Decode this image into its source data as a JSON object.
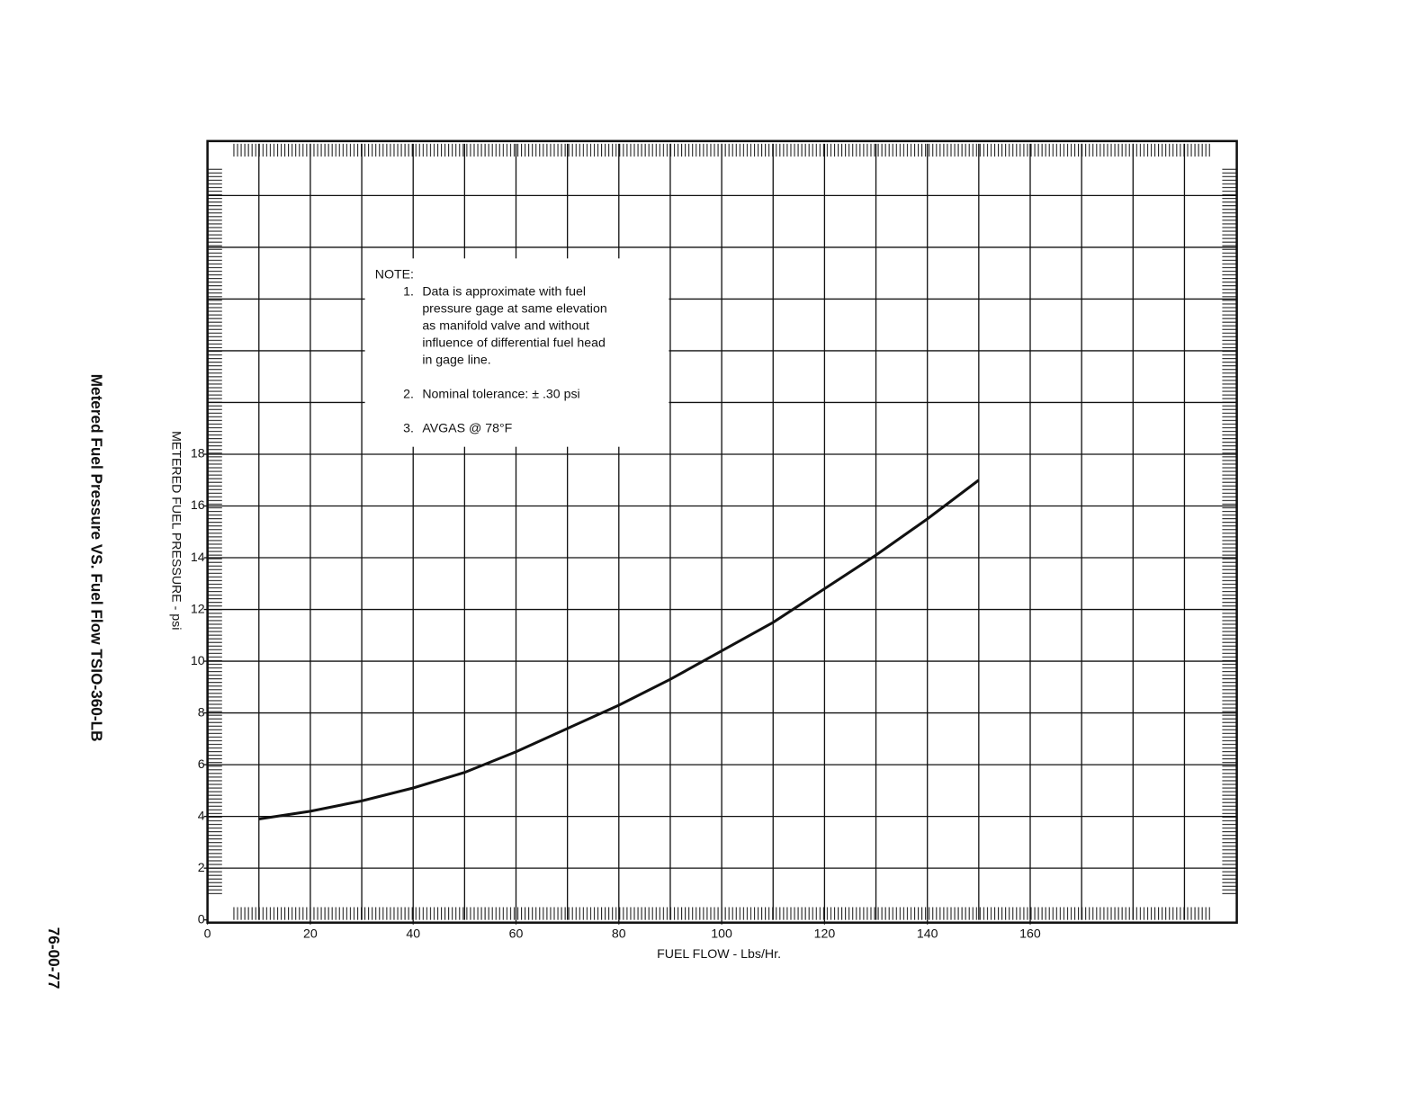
{
  "chart_data": {
    "type": "line",
    "title": "Metered Fuel Pressure VS. Fuel Flow TSIO-360-LB",
    "page_number": "76-00-77",
    "x_label": "FUEL FLOW - Lbs/Hr.",
    "y_label": "METERED FUEL PRESSURE - psi",
    "x": [
      10,
      20,
      30,
      40,
      50,
      60,
      70,
      80,
      90,
      100,
      110,
      120,
      130,
      140,
      150
    ],
    "series": [
      {
        "color": "#111111",
        "values": [
          3.9,
          4.2,
          4.6,
          5.1,
          5.7,
          6.5,
          7.4,
          8.3,
          9.3,
          10.4,
          11.5,
          12.8,
          14.1,
          15.5,
          17.0
        ]
      }
    ],
    "xlim": [
      0,
      200
    ],
    "ylim": [
      0,
      30
    ],
    "xticks": [
      0,
      20,
      40,
      60,
      80,
      100,
      120,
      140,
      160
    ],
    "yticks": [
      0,
      2,
      4,
      6,
      8,
      10,
      12,
      14,
      16,
      18
    ],
    "grid": true,
    "note": {
      "heading": "NOTE:",
      "items": [
        {
          "number": "1.",
          "lines": [
            "Data is approximate with fuel",
            "pressure gage at same elevation",
            "as manifold valve and without",
            "influence of differential fuel head",
            "in gage line."
          ]
        },
        {
          "number": "2.",
          "lines": [
            "Nominal tolerance: ± .30 psi"
          ]
        },
        {
          "number": "3.",
          "lines": [
            "AVGAS @ 78°F"
          ]
        }
      ]
    }
  }
}
